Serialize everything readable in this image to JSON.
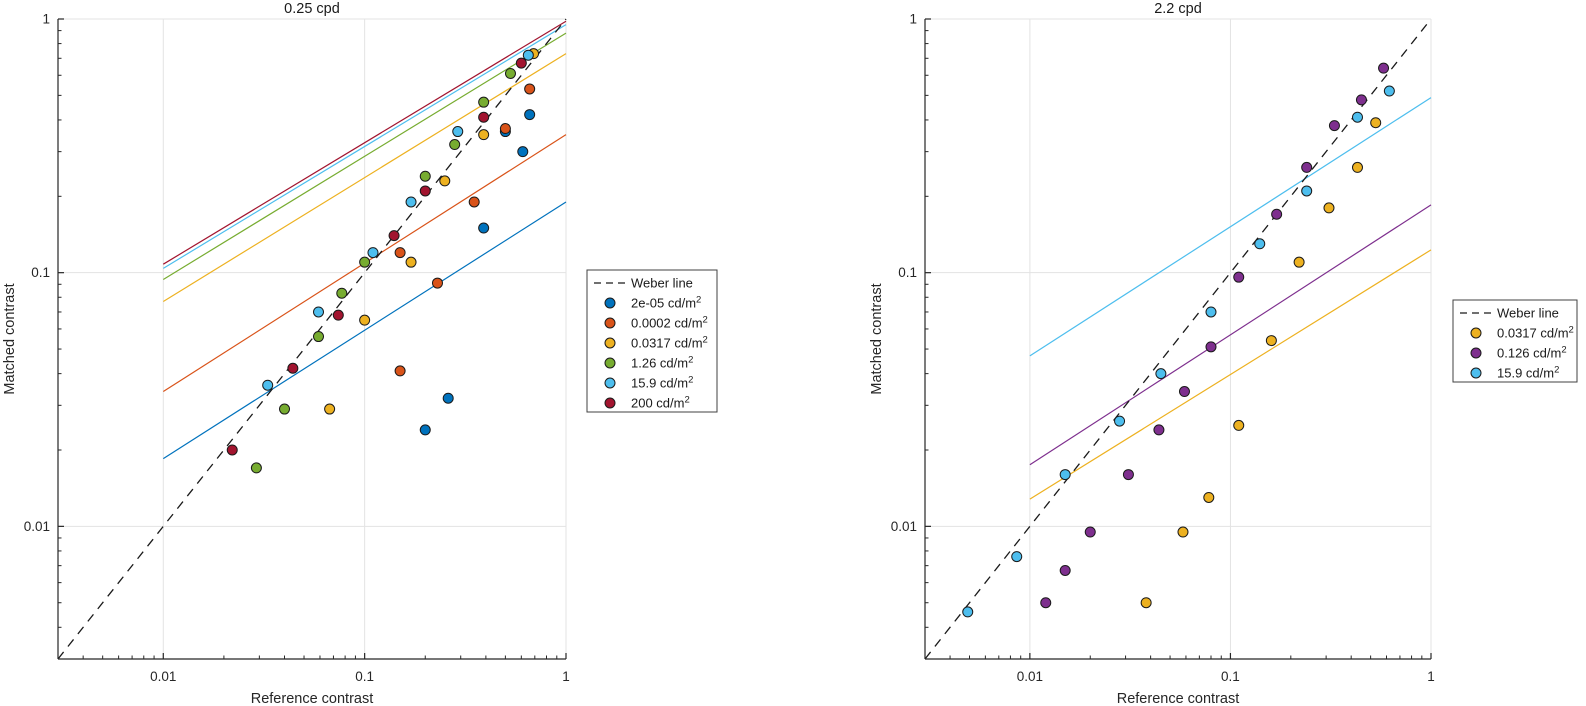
{
  "figure": {
    "background": "#ffffff",
    "axis_color": "#262626",
    "grid_color": "#e3e3e3",
    "tick_label_color": "#262626",
    "marker_edge_color": "#1a1a1a",
    "weber_color": "#1a1a1a"
  },
  "chart_data": [
    {
      "type": "scatter",
      "title": "0.25 cpd",
      "xlabel": "Reference contrast",
      "ylabel": "Matched contrast",
      "xscale": "log",
      "yscale": "log",
      "xlim": [
        0.003,
        1
      ],
      "ylim": [
        0.003,
        1
      ],
      "x_ticks": {
        "values": [
          0.01,
          0.1,
          1
        ],
        "labels": [
          "0.01",
          "0.1",
          "1"
        ]
      },
      "y_ticks": {
        "values": [
          0.01,
          0.1,
          1
        ],
        "labels": [
          "0.01",
          "0.1",
          "1"
        ]
      },
      "grid": true,
      "legend_position": "outside-right",
      "weber": {
        "label": "Weber line",
        "x": [
          0.003,
          1
        ],
        "y": [
          0.003,
          1
        ]
      },
      "series": [
        {
          "label": "2e-05 cd/m",
          "label_sup": "2",
          "color": "#0072BD",
          "line": {
            "x": [
              0.01,
              1
            ],
            "y": [
              0.0185,
              0.19
            ]
          },
          "points": [
            [
              0.2,
              0.024
            ],
            [
              0.26,
              0.032
            ],
            [
              0.39,
              0.15
            ],
            [
              0.5,
              0.36
            ],
            [
              0.61,
              0.3
            ],
            [
              0.66,
              0.42
            ]
          ]
        },
        {
          "label": "0.0002 cd/m",
          "label_sup": "2",
          "color": "#D95319",
          "line": {
            "x": [
              0.01,
              1
            ],
            "y": [
              0.034,
              0.35
            ]
          },
          "points": [
            [
              0.15,
              0.041
            ],
            [
              0.15,
              0.12
            ],
            [
              0.23,
              0.091
            ],
            [
              0.35,
              0.19
            ],
            [
              0.5,
              0.37
            ],
            [
              0.66,
              0.53
            ]
          ]
        },
        {
          "label": "0.0317 cd/m",
          "label_sup": "2",
          "color": "#EDB120",
          "line": {
            "x": [
              0.01,
              1
            ],
            "y": [
              0.077,
              0.73
            ]
          },
          "points": [
            [
              0.067,
              0.029
            ],
            [
              0.1,
              0.065
            ],
            [
              0.17,
              0.11
            ],
            [
              0.25,
              0.23
            ],
            [
              0.39,
              0.35
            ],
            [
              0.69,
              0.73
            ]
          ]
        },
        {
          "label": "1.26 cd/m",
          "label_sup": "2",
          "color": "#77AC30",
          "line": {
            "x": [
              0.01,
              1
            ],
            "y": [
              0.094,
              0.88
            ]
          },
          "points": [
            [
              0.029,
              0.017
            ],
            [
              0.04,
              0.029
            ],
            [
              0.059,
              0.056
            ],
            [
              0.077,
              0.083
            ],
            [
              0.1,
              0.11
            ],
            [
              0.2,
              0.24
            ],
            [
              0.28,
              0.32
            ],
            [
              0.39,
              0.47
            ],
            [
              0.53,
              0.61
            ]
          ]
        },
        {
          "label": "15.9 cd/m",
          "label_sup": "2",
          "color": "#4DBEEE",
          "line": {
            "x": [
              0.01,
              1
            ],
            "y": [
              0.104,
              0.95
            ]
          },
          "points": [
            [
              0.033,
              0.036
            ],
            [
              0.059,
              0.07
            ],
            [
              0.11,
              0.12
            ],
            [
              0.17,
              0.19
            ],
            [
              0.29,
              0.36
            ],
            [
              0.65,
              0.72
            ]
          ]
        },
        {
          "label": "200 cd/m",
          "label_sup": "2",
          "color": "#A2142F",
          "line": {
            "x": [
              0.01,
              1
            ],
            "y": [
              0.108,
              0.98
            ]
          },
          "points": [
            [
              0.022,
              0.02
            ],
            [
              0.044,
              0.042
            ],
            [
              0.074,
              0.068
            ],
            [
              0.14,
              0.14
            ],
            [
              0.2,
              0.21
            ],
            [
              0.39,
              0.41
            ],
            [
              0.6,
              0.67
            ]
          ]
        }
      ]
    },
    {
      "type": "scatter",
      "title": "2.2 cpd",
      "xlabel": "Reference contrast",
      "ylabel": "Matched contrast",
      "xscale": "log",
      "yscale": "log",
      "xlim": [
        0.003,
        1
      ],
      "ylim": [
        0.003,
        1
      ],
      "x_ticks": {
        "values": [
          0.01,
          0.1,
          1
        ],
        "labels": [
          "0.01",
          "0.1",
          "1"
        ]
      },
      "y_ticks": {
        "values": [
          0.01,
          0.1,
          1
        ],
        "labels": [
          "0.01",
          "0.1",
          "1"
        ]
      },
      "grid": true,
      "legend_position": "outside-right",
      "weber": {
        "label": "Weber line",
        "x": [
          0.003,
          1
        ],
        "y": [
          0.003,
          1
        ]
      },
      "series": [
        {
          "label": "0.0317 cd/m",
          "label_sup": "2",
          "color": "#EDB120",
          "line": {
            "x": [
              0.01,
              1
            ],
            "y": [
              0.0128,
              0.123
            ]
          },
          "points": [
            [
              0.038,
              0.005
            ],
            [
              0.058,
              0.0095
            ],
            [
              0.078,
              0.013
            ],
            [
              0.11,
              0.025
            ],
            [
              0.16,
              0.054
            ],
            [
              0.22,
              0.11
            ],
            [
              0.31,
              0.18
            ],
            [
              0.43,
              0.26
            ],
            [
              0.53,
              0.39
            ]
          ]
        },
        {
          "label": "0.126 cd/m",
          "label_sup": "2",
          "color": "#7E2F8E",
          "line": {
            "x": [
              0.01,
              1
            ],
            "y": [
              0.0175,
              0.185
            ]
          },
          "points": [
            [
              0.012,
              0.005
            ],
            [
              0.015,
              0.0067
            ],
            [
              0.02,
              0.0095
            ],
            [
              0.031,
              0.016
            ],
            [
              0.044,
              0.024
            ],
            [
              0.059,
              0.034
            ],
            [
              0.08,
              0.051
            ],
            [
              0.11,
              0.096
            ],
            [
              0.17,
              0.17
            ],
            [
              0.24,
              0.26
            ],
            [
              0.33,
              0.38
            ],
            [
              0.45,
              0.48
            ],
            [
              0.58,
              0.64
            ]
          ]
        },
        {
          "label": "15.9 cd/m",
          "label_sup": "2",
          "color": "#4DBEEE",
          "line": {
            "x": [
              0.01,
              1
            ],
            "y": [
              0.047,
              0.49
            ]
          },
          "points": [
            [
              0.0049,
              0.0046
            ],
            [
              0.0086,
              0.0076
            ],
            [
              0.015,
              0.016
            ],
            [
              0.028,
              0.026
            ],
            [
              0.045,
              0.04
            ],
            [
              0.08,
              0.07
            ],
            [
              0.14,
              0.13
            ],
            [
              0.24,
              0.21
            ],
            [
              0.43,
              0.41
            ],
            [
              0.62,
              0.52
            ]
          ]
        }
      ]
    }
  ]
}
